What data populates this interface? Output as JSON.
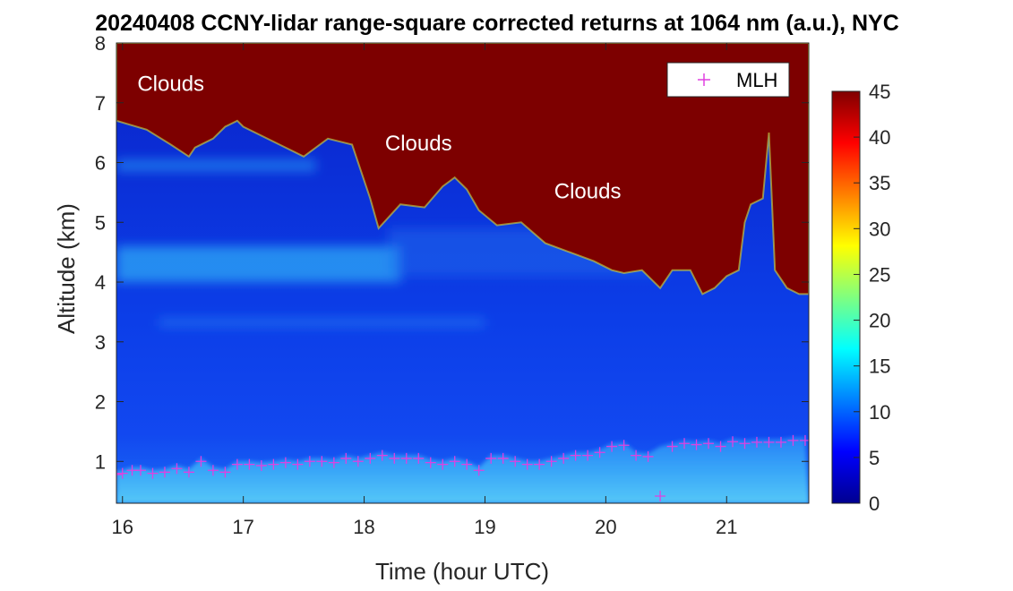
{
  "chart_data": {
    "type": "heatmap",
    "title": "20240408 CCNY-lidar range-square corrected returns at 1064 nm (a.u.), NYC",
    "xlabel": "Time (hour UTC)",
    "ylabel": "Altitude (km)",
    "xlim": [
      15.95,
      21.68
    ],
    "ylim": [
      0.3,
      8
    ],
    "xticks": [
      16,
      17,
      18,
      19,
      20,
      21
    ],
    "yticks": [
      1,
      2,
      3,
      4,
      5,
      6,
      7,
      8
    ],
    "colorbar": {
      "min": 0,
      "max": 45,
      "ticks": [
        0,
        5,
        10,
        15,
        20,
        25,
        30,
        35,
        40,
        45
      ],
      "colormap": "jet"
    },
    "legend": {
      "location": "top-right",
      "entries": [
        {
          "label": "MLH",
          "marker": "+",
          "color": "#e040e0"
        }
      ]
    },
    "annotations": [
      {
        "text": "Clouds",
        "x": 16.4,
        "y": 7.2
      },
      {
        "text": "Clouds",
        "x": 18.45,
        "y": 6.2
      },
      {
        "text": "Clouds",
        "x": 19.85,
        "y": 5.4
      }
    ],
    "cloud_base_km": {
      "x": [
        15.95,
        16.2,
        16.4,
        16.55,
        16.6,
        16.75,
        16.85,
        16.95,
        17.0,
        17.3,
        17.5,
        17.7,
        17.9,
        18.05,
        18.12,
        18.3,
        18.5,
        18.65,
        18.75,
        18.85,
        18.95,
        19.1,
        19.3,
        19.5,
        19.7,
        19.9,
        20.05,
        20.15,
        20.3,
        20.45,
        20.55,
        20.7,
        20.8,
        20.9,
        21.0,
        21.1,
        21.15,
        21.2,
        21.3,
        21.35,
        21.4,
        21.5,
        21.6,
        21.68
      ],
      "y": [
        6.7,
        6.55,
        6.3,
        6.1,
        6.25,
        6.4,
        6.6,
        6.7,
        6.6,
        6.3,
        6.1,
        6.4,
        6.3,
        5.4,
        4.9,
        5.3,
        5.25,
        5.6,
        5.75,
        5.55,
        5.2,
        4.95,
        5.0,
        4.65,
        4.5,
        4.35,
        4.2,
        4.15,
        4.2,
        3.9,
        4.2,
        4.2,
        3.8,
        3.9,
        4.1,
        4.2,
        5.0,
        5.3,
        5.4,
        6.5,
        4.2,
        3.9,
        3.8,
        3.8
      ]
    },
    "mlh": {
      "x": [
        15.95,
        16.0,
        16.08,
        16.15,
        16.25,
        16.35,
        16.45,
        16.55,
        16.65,
        16.75,
        16.85,
        16.95,
        17.05,
        17.15,
        17.25,
        17.35,
        17.45,
        17.55,
        17.65,
        17.75,
        17.85,
        17.95,
        18.05,
        18.15,
        18.25,
        18.35,
        18.45,
        18.55,
        18.65,
        18.75,
        18.85,
        18.95,
        19.05,
        19.15,
        19.25,
        19.35,
        19.45,
        19.55,
        19.65,
        19.75,
        19.85,
        19.95,
        20.05,
        20.15,
        20.25,
        20.35,
        20.45,
        20.55,
        20.65,
        20.75,
        20.85,
        20.95,
        21.05,
        21.15,
        21.25,
        21.35,
        21.45,
        21.55,
        21.65
      ],
      "y": [
        0.78,
        0.8,
        0.85,
        0.85,
        0.8,
        0.82,
        0.88,
        0.82,
        1.0,
        0.85,
        0.82,
        0.95,
        0.95,
        0.93,
        0.95,
        0.98,
        0.95,
        1.0,
        1.0,
        0.98,
        1.05,
        1.0,
        1.05,
        1.1,
        1.05,
        1.05,
        1.05,
        0.98,
        0.95,
        1.0,
        0.95,
        0.85,
        1.05,
        1.05,
        1.0,
        0.95,
        0.95,
        1.0,
        1.05,
        1.1,
        1.1,
        1.15,
        1.25,
        1.27,
        1.1,
        1.08,
        0.42,
        1.25,
        1.3,
        1.28,
        1.3,
        1.25,
        1.33,
        1.3,
        1.32,
        1.32,
        1.32,
        1.35,
        1.35
      ]
    }
  }
}
